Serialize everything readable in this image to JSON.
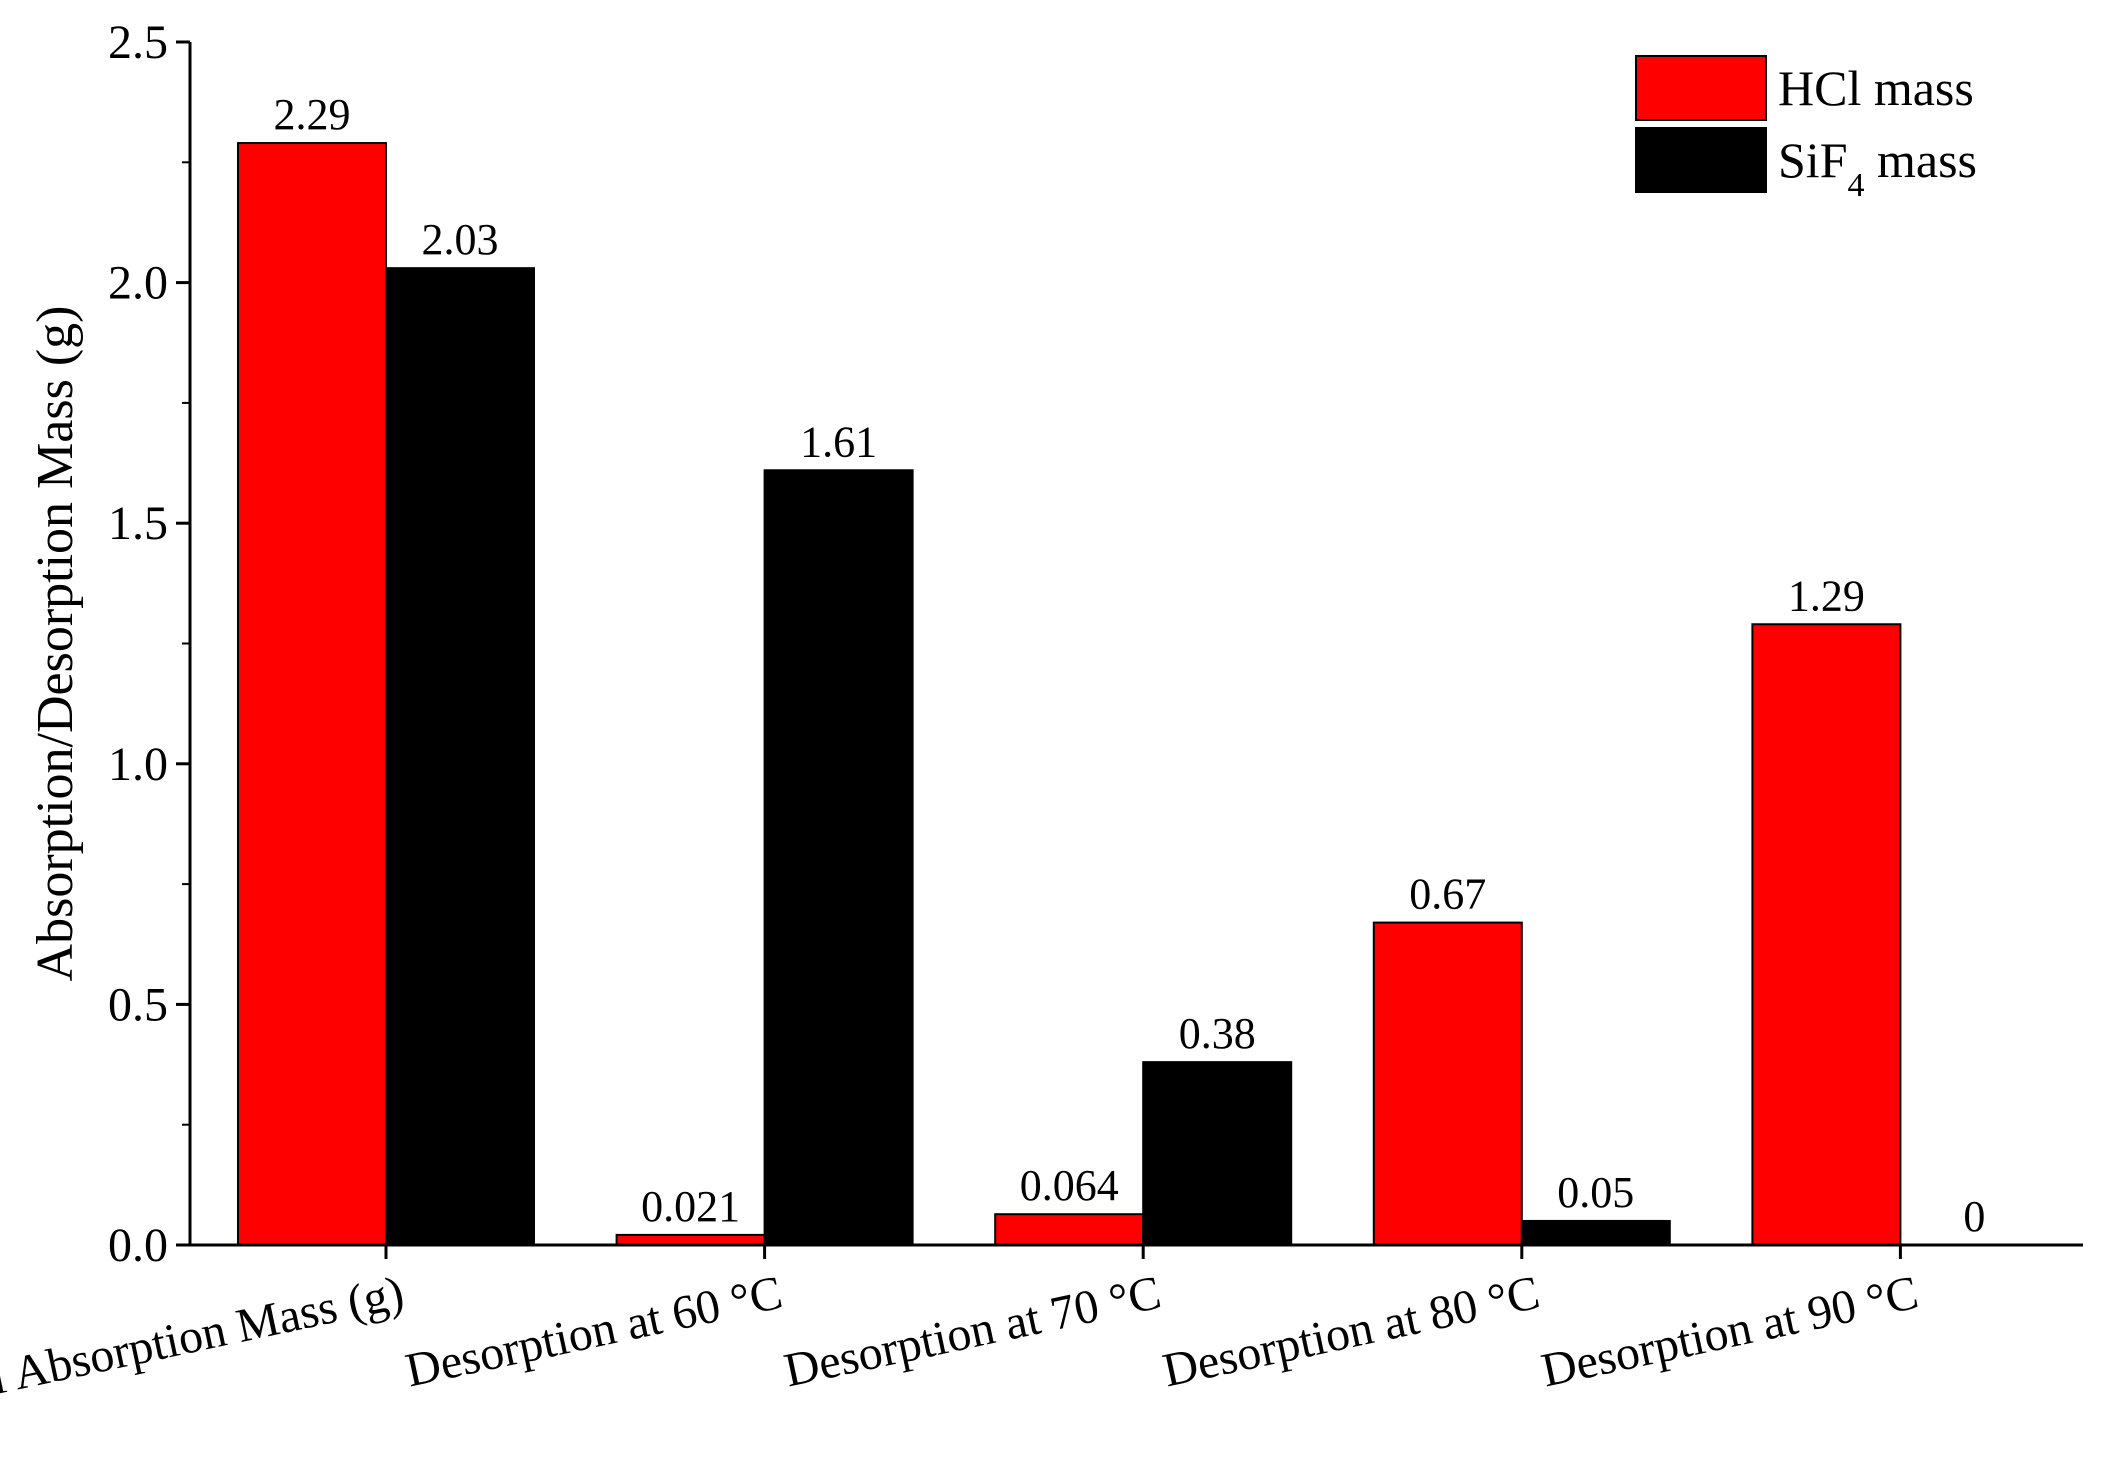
{
  "chart_data": {
    "type": "bar",
    "title": "",
    "xlabel": "",
    "ylabel": "Absorption/Desorption Mass (g)",
    "ylim": [
      0,
      2.5
    ],
    "yticks": [
      "0.0",
      "0.5",
      "1.0",
      "1.5",
      "2.0",
      "2.5"
    ],
    "categories": [
      "Initial Absorption Mass (g)",
      "Desorption at 60 °C",
      "Desorption at 70 °C",
      "Desorption at 80 °C",
      "Desorption at 90 °C"
    ],
    "series": [
      {
        "name": "HCl mass",
        "name_parts": [
          "HCl mass"
        ],
        "color": "#ff0000",
        "values": [
          2.29,
          0.021,
          0.064,
          0.67,
          1.29
        ],
        "labels": [
          "2.29",
          "0.021",
          "0.064",
          "0.67",
          "1.29"
        ]
      },
      {
        "name": "SiF4 mass",
        "name_parts": [
          "SiF",
          "4",
          " mass"
        ],
        "color": "#000000",
        "values": [
          2.03,
          1.61,
          0.38,
          0.05,
          0
        ],
        "labels": [
          "2.03",
          "1.61",
          "0.38",
          "0.05",
          "0"
        ]
      }
    ],
    "legend_position": "top-right",
    "grid": false
  }
}
